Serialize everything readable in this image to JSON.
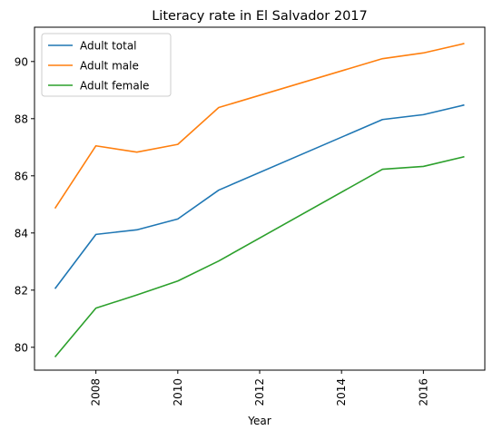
{
  "chart_data": {
    "type": "line",
    "title": "Literacy rate in El Salvador 2017",
    "xlabel": "Year",
    "ylabel": "",
    "xlim": [
      2006.5,
      2017.5
    ],
    "ylim": [
      79.2,
      91.2
    ],
    "xticks": [
      2008,
      2010,
      2012,
      2014,
      2016
    ],
    "yticks": [
      80,
      82,
      84,
      86,
      88,
      90
    ],
    "grid": false,
    "legend_position": "top-left",
    "x": [
      2007,
      2008,
      2009,
      2010,
      2011,
      2015,
      2016,
      2017
    ],
    "series": [
      {
        "name": "Adult total",
        "color": "#1f77b4",
        "values": [
          82.05,
          83.95,
          84.11,
          84.49,
          85.5,
          87.97,
          88.14,
          88.48
        ]
      },
      {
        "name": "Adult male",
        "color": "#ff7f0e",
        "values": [
          84.86,
          87.05,
          86.83,
          87.1,
          88.39,
          90.1,
          90.3,
          90.63
        ]
      },
      {
        "name": "Adult female",
        "color": "#2ca02c",
        "values": [
          79.66,
          81.37,
          81.83,
          82.32,
          83.02,
          86.23,
          86.33,
          86.67
        ]
      }
    ]
  }
}
